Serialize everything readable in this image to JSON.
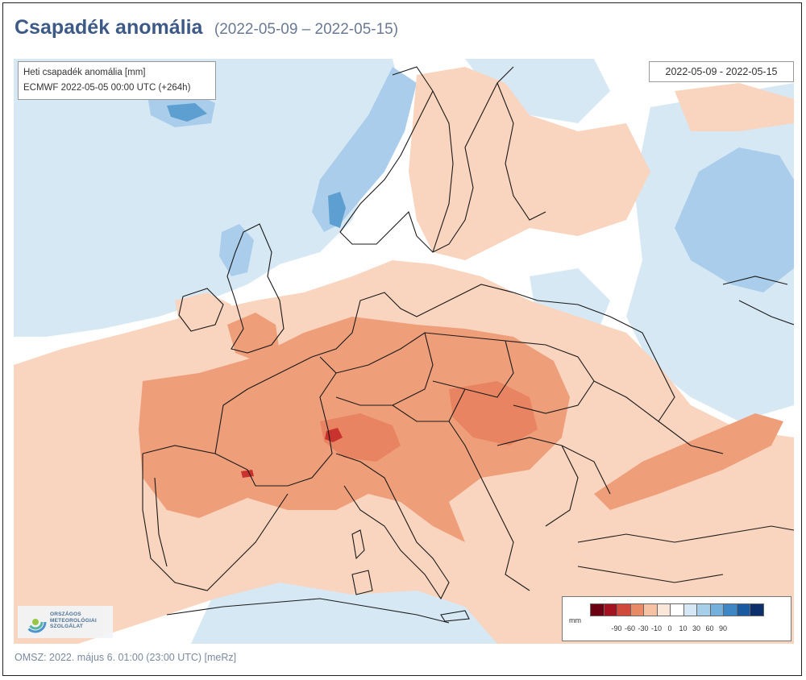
{
  "header": {
    "title": "Csapadék anomália",
    "subtitle": "(2022-05-09 – 2022-05-15)"
  },
  "info": {
    "line1": "Heti csapadék anomália [mm]",
    "line2": "ECMWF 2022-05-05 00:00 UTC (+264h)"
  },
  "date_range": "2022-05-09 - 2022-05-15",
  "legend": {
    "unit": "mm",
    "colors": [
      "#6b0012",
      "#a31220",
      "#cf4a3a",
      "#e88a66",
      "#f7c2a4",
      "#fbe6da",
      "#ffffff",
      "#d6e8f5",
      "#a8cfea",
      "#74b0dc",
      "#3f86c4",
      "#1a5aa0",
      "#0d2f6b"
    ],
    "ticks": [
      "-90",
      "-60",
      "-30",
      "-10",
      "0",
      "10",
      "30",
      "60",
      "90"
    ]
  },
  "logo": {
    "line1": "ORSZÁGOS",
    "line2": "METEOROLÓGIAI",
    "line3": "SZOLGÁLAT",
    "colors": [
      "#3d8fd0",
      "#4bb2a0",
      "#8fc63f"
    ]
  },
  "footer": "OMSZ: 2022. május 6. 01:00 (23:00  UTC)  [meRz]",
  "map": {
    "colors": {
      "sea_blue": "#d7e8f5",
      "light_blue": "#a9cdea",
      "mid_blue": "#5e9fd2",
      "dark_blue": "#2f6fae",
      "light_orange": "#f9d4be",
      "mid_orange": "#ef9e7a",
      "dark_orange": "#e98462",
      "red": "#c8332e",
      "border": "#1a1a1a"
    }
  }
}
